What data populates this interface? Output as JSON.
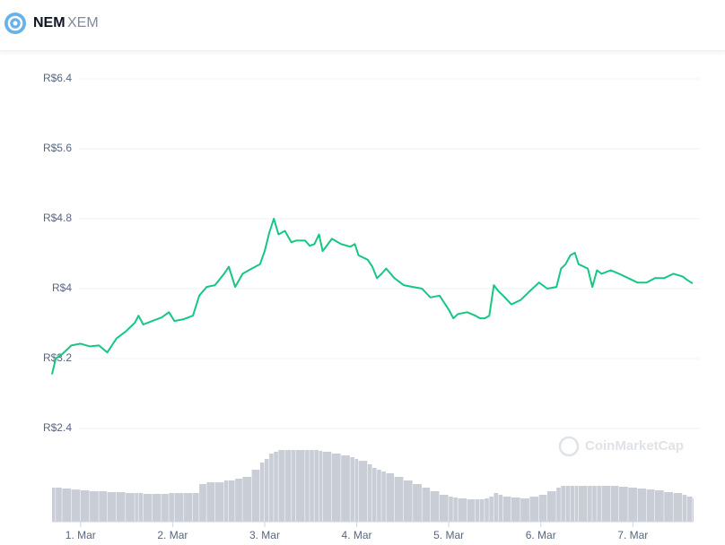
{
  "header": {
    "name": "NEM",
    "symbol": "XEM"
  },
  "chart_data": {
    "type": "line",
    "watermark": "CoinMarketCap",
    "x": [
      0.69,
      0.73,
      0.8,
      0.9,
      1.0,
      1.1,
      1.2,
      1.29,
      1.39,
      1.49,
      1.59,
      1.63,
      1.68,
      1.78,
      1.88,
      1.96,
      2.02,
      2.12,
      2.22,
      2.29,
      2.37,
      2.46,
      2.56,
      2.61,
      2.68,
      2.76,
      2.86,
      2.95,
      3.0,
      3.05,
      3.1,
      3.15,
      3.22,
      3.29,
      3.34,
      3.44,
      3.49,
      3.54,
      3.59,
      3.63,
      3.73,
      3.83,
      3.93,
      3.98,
      4.02,
      4.12,
      4.17,
      4.22,
      4.27,
      4.32,
      4.41,
      4.51,
      4.61,
      4.71,
      4.8,
      4.9,
      5.0,
      5.05,
      5.1,
      5.2,
      5.29,
      5.34,
      5.39,
      5.44,
      5.49,
      5.54,
      5.59,
      5.68,
      5.78,
      5.88,
      5.98,
      6.07,
      6.17,
      6.22,
      6.27,
      6.32,
      6.37,
      6.41,
      6.51,
      6.56,
      6.61,
      6.66,
      6.76,
      6.85,
      6.95,
      7.05,
      7.15,
      7.24,
      7.34,
      7.44,
      7.54,
      7.59,
      7.65
    ],
    "series": [
      {
        "color": "#16c784",
        "values": [
          3.02,
          3.2,
          3.25,
          3.35,
          3.37,
          3.34,
          3.35,
          3.27,
          3.43,
          3.51,
          3.61,
          3.69,
          3.59,
          3.63,
          3.67,
          3.73,
          3.63,
          3.65,
          3.69,
          3.92,
          4.02,
          4.04,
          4.17,
          4.25,
          4.02,
          4.17,
          4.23,
          4.28,
          4.43,
          4.64,
          4.8,
          4.62,
          4.66,
          4.53,
          4.55,
          4.55,
          4.49,
          4.51,
          4.62,
          4.43,
          4.57,
          4.51,
          4.48,
          4.51,
          4.38,
          4.33,
          4.25,
          4.12,
          4.17,
          4.23,
          4.12,
          4.04,
          4.02,
          4.0,
          3.9,
          3.92,
          3.76,
          3.66,
          3.71,
          3.73,
          3.69,
          3.66,
          3.66,
          3.69,
          4.04,
          3.97,
          3.92,
          3.82,
          3.87,
          3.97,
          4.07,
          4.0,
          4.02,
          4.23,
          4.28,
          4.38,
          4.41,
          4.28,
          4.23,
          4.02,
          4.21,
          4.17,
          4.21,
          4.17,
          4.12,
          4.07,
          4.07,
          4.12,
          4.12,
          4.17,
          4.14,
          4.1,
          4.06
        ]
      }
    ],
    "volume": {
      "color": "#c9ced6",
      "ylim": [
        0,
        100
      ],
      "values": [
        38,
        38,
        37,
        36,
        35,
        34,
        34,
        33,
        33,
        32,
        32,
        32,
        31,
        31,
        31,
        32,
        32,
        32,
        32,
        42,
        44,
        44,
        46,
        46,
        48,
        50,
        58,
        66,
        70,
        76,
        78,
        80,
        80,
        80,
        80,
        80,
        80,
        80,
        79,
        78,
        76,
        74,
        72,
        70,
        68,
        64,
        60,
        58,
        56,
        54,
        50,
        46,
        42,
        38,
        34,
        30,
        28,
        27,
        26,
        25,
        25,
        25,
        26,
        28,
        32,
        30,
        28,
        27,
        26,
        28,
        30,
        34,
        38,
        40,
        40,
        40,
        40,
        40,
        40,
        40,
        40,
        40,
        40,
        39,
        38,
        37,
        36,
        35,
        33,
        32,
        30,
        28,
        26
      ]
    },
    "ylim": [
      2.4,
      6.4
    ],
    "yticks": [
      {
        "value": 2.4,
        "label": "R$2.4"
      },
      {
        "value": 3.2,
        "label": "R$3.2"
      },
      {
        "value": 4,
        "label": "R$4"
      },
      {
        "value": 4.8,
        "label": "R$4.8"
      },
      {
        "value": 5.6,
        "label": "R$5.6"
      },
      {
        "value": 6.4,
        "label": "R$6.4"
      }
    ],
    "xlim": [
      0.69,
      7.65
    ],
    "xticks": [
      {
        "value": 1,
        "label": "1. Mar"
      },
      {
        "value": 2,
        "label": "2. Mar"
      },
      {
        "value": 3,
        "label": "3. Mar"
      },
      {
        "value": 4,
        "label": "4. Mar"
      },
      {
        "value": 5,
        "label": "5. Mar"
      },
      {
        "value": 6,
        "label": "6. Mar"
      },
      {
        "value": 7,
        "label": "7. Mar"
      }
    ],
    "grid": true
  }
}
